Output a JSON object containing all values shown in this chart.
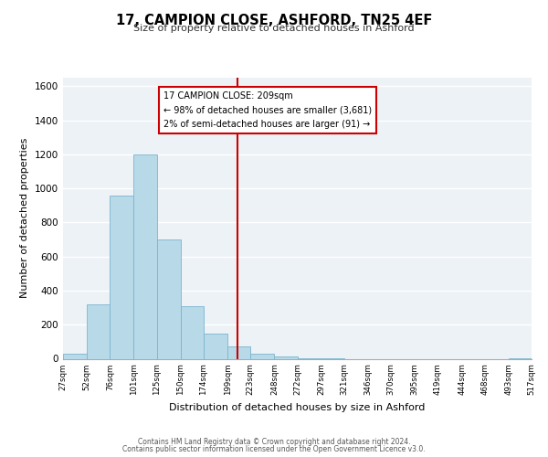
{
  "title1": "17, CAMPION CLOSE, ASHFORD, TN25 4EF",
  "title2": "Size of property relative to detached houses in Ashford",
  "xlabel": "Distribution of detached houses by size in Ashford",
  "ylabel": "Number of detached properties",
  "bar_edges": [
    27,
    52,
    76,
    101,
    125,
    150,
    174,
    199,
    223,
    248,
    272,
    297,
    321,
    346,
    370,
    395,
    419,
    444,
    468,
    493,
    517
  ],
  "bar_heights": [
    30,
    320,
    960,
    1200,
    700,
    310,
    150,
    75,
    30,
    15,
    5,
    2,
    0,
    0,
    0,
    0,
    0,
    0,
    0,
    5
  ],
  "bar_color": "#b8d9e8",
  "bar_edge_color": "#7ab5ce",
  "vline_x": 209,
  "vline_color": "#cc0000",
  "annotation_line1": "17 CAMPION CLOSE: 209sqm",
  "annotation_line2": "← 98% of detached houses are smaller (3,681)",
  "annotation_line3": "2% of semi-detached houses are larger (91) →",
  "annotation_box_color": "#cc0000",
  "ylim": [
    0,
    1650
  ],
  "yticks": [
    0,
    200,
    400,
    600,
    800,
    1000,
    1200,
    1400,
    1600
  ],
  "tick_labels": [
    "27sqm",
    "52sqm",
    "76sqm",
    "101sqm",
    "125sqm",
    "150sqm",
    "174sqm",
    "199sqm",
    "223sqm",
    "248sqm",
    "272sqm",
    "297sqm",
    "321sqm",
    "346sqm",
    "370sqm",
    "395sqm",
    "419sqm",
    "444sqm",
    "468sqm",
    "493sqm",
    "517sqm"
  ],
  "footer1": "Contains HM Land Registry data © Crown copyright and database right 2024.",
  "footer2": "Contains public sector information licensed under the Open Government Licence v3.0.",
  "bg_color": "#edf2f7",
  "grid_color": "#ffffff",
  "title_fontsize": 10.5,
  "subtitle_fontsize": 8,
  "ylabel_fontsize": 8,
  "xlabel_fontsize": 8
}
